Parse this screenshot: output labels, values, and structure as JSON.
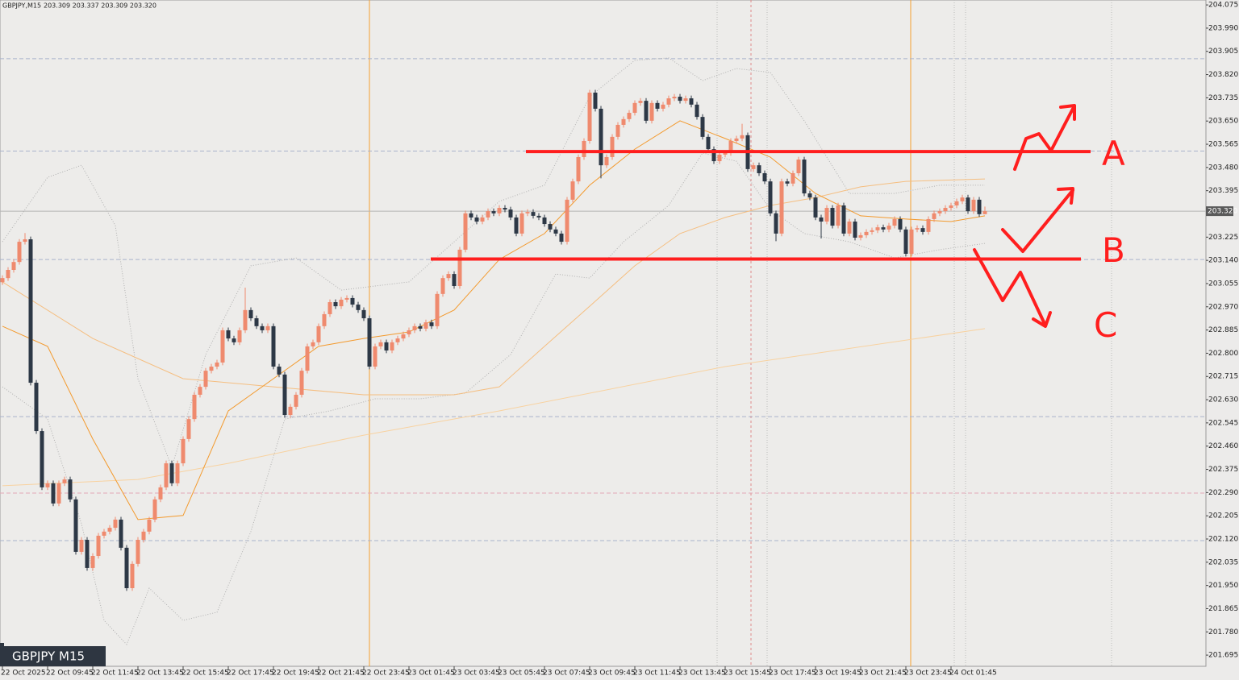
{
  "chart_data": {
    "type": "candlestick",
    "title": "GBPJPY,M15",
    "subtitle": "203.309 203.337 203.309 203.320",
    "badge": "GBPJPY M15",
    "up_color": "#ef8a6e",
    "down_color": "#2d3846",
    "open": [
      203.06,
      203.075,
      203.105,
      203.134,
      203.208,
      203.217,
      202.692,
      202.515,
      202.309,
      202.324,
      202.25,
      202.324,
      202.338,
      202.265,
      202.073,
      202.117,
      202.014,
      202.058,
      202.132,
      202.147,
      202.161,
      202.191,
      202.088,
      201.94,
      202.029,
      202.117,
      202.147,
      202.191,
      202.265,
      202.309,
      202.397,
      202.324,
      202.397,
      202.486,
      202.559,
      202.648,
      202.677,
      202.736,
      202.751,
      202.766,
      202.884,
      202.854,
      202.84,
      202.884,
      202.958,
      202.928,
      202.899,
      202.884,
      202.899,
      202.751,
      202.722,
      202.574,
      202.604,
      202.648,
      202.736,
      202.825,
      202.84,
      202.899,
      202.943,
      202.987,
      202.972,
      202.996,
      203.002,
      202.978,
      202.958,
      202.928,
      202.751,
      202.825,
      202.84,
      202.81,
      202.84,
      202.854,
      202.869,
      202.884,
      202.899,
      202.89,
      202.913,
      202.899,
      203.017,
      203.075,
      203.09,
      203.046,
      203.179,
      203.312,
      203.297,
      203.282,
      203.297,
      203.32,
      203.312,
      203.332,
      203.326,
      203.297,
      203.238,
      203.312,
      203.317,
      203.303,
      203.297,
      203.273,
      203.253,
      203.238,
      203.208,
      203.362,
      203.429,
      203.518,
      203.577,
      203.754,
      203.695,
      203.488,
      203.518,
      203.592,
      203.636,
      203.657,
      203.68,
      203.716,
      203.724,
      203.651,
      203.716,
      203.695,
      203.71,
      203.733,
      203.739,
      203.724,
      203.733,
      203.71,
      203.665,
      203.592,
      203.547,
      203.503,
      203.527,
      203.533,
      203.577,
      203.586,
      203.598,
      203.474,
      203.488,
      203.459,
      203.429,
      203.312,
      203.238,
      203.429,
      203.421,
      203.459,
      203.509,
      203.385,
      203.37,
      203.297,
      203.282,
      203.332,
      203.267,
      203.341,
      203.238,
      203.282,
      203.223,
      203.232,
      203.244,
      203.25,
      203.261,
      203.253,
      203.267,
      203.291,
      203.253,
      203.164,
      203.253,
      203.258,
      203.244,
      203.291,
      203.312,
      203.32,
      203.332,
      203.341,
      203.356,
      203.37,
      203.32,
      203.362,
      203.309
    ],
    "high": [
      203.085,
      203.115,
      203.144,
      203.218,
      203.24,
      203.227,
      202.702,
      202.525,
      202.334,
      202.334,
      202.334,
      202.348,
      202.348,
      202.275,
      202.127,
      202.127,
      202.068,
      202.142,
      202.157,
      202.171,
      202.201,
      202.201,
      202.098,
      202.039,
      202.127,
      202.157,
      202.201,
      202.275,
      202.319,
      202.407,
      202.407,
      202.407,
      202.496,
      202.569,
      202.658,
      202.687,
      202.746,
      202.761,
      202.776,
      202.894,
      202.894,
      202.864,
      202.894,
      203.04,
      202.968,
      202.938,
      202.909,
      202.909,
      202.909,
      202.761,
      202.732,
      202.614,
      202.658,
      202.746,
      202.835,
      202.85,
      202.909,
      202.953,
      202.997,
      202.997,
      203.006,
      203.012,
      203.012,
      202.988,
      202.968,
      202.938,
      202.835,
      202.85,
      202.85,
      202.85,
      202.864,
      202.879,
      202.894,
      202.909,
      202.909,
      202.923,
      202.923,
      203.027,
      203.085,
      203.1,
      203.1,
      203.189,
      203.322,
      203.322,
      203.307,
      203.307,
      203.33,
      203.33,
      203.342,
      203.342,
      203.336,
      203.307,
      203.322,
      203.327,
      203.327,
      203.313,
      203.307,
      203.283,
      203.263,
      203.248,
      203.372,
      203.439,
      203.528,
      203.587,
      203.764,
      203.764,
      203.705,
      203.528,
      203.602,
      203.646,
      203.667,
      203.69,
      203.726,
      203.734,
      203.734,
      203.726,
      203.726,
      203.72,
      203.743,
      203.749,
      203.749,
      203.743,
      203.743,
      203.72,
      203.675,
      203.602,
      203.557,
      203.537,
      203.543,
      203.587,
      203.596,
      203.64,
      203.608,
      203.498,
      203.498,
      203.469,
      203.439,
      203.322,
      203.439,
      203.439,
      203.469,
      203.519,
      203.519,
      203.395,
      203.38,
      203.307,
      203.342,
      203.342,
      203.351,
      203.351,
      203.292,
      203.292,
      203.242,
      203.254,
      203.26,
      203.271,
      203.271,
      203.277,
      203.301,
      203.301,
      203.263,
      203.263,
      203.268,
      203.268,
      203.301,
      203.322,
      203.33,
      203.342,
      203.351,
      203.366,
      203.38,
      203.38,
      203.372,
      203.372,
      203.337
    ],
    "low": [
      203.05,
      203.065,
      203.095,
      203.124,
      203.198,
      202.682,
      202.505,
      202.299,
      202.299,
      202.24,
      202.24,
      202.314,
      202.255,
      202.063,
      202.063,
      202.004,
      202.004,
      202.048,
      202.122,
      202.137,
      202.151,
      202.078,
      201.93,
      201.93,
      202.019,
      202.107,
      202.137,
      202.181,
      202.255,
      202.299,
      202.314,
      202.314,
      202.387,
      202.476,
      202.549,
      202.638,
      202.667,
      202.726,
      202.741,
      202.756,
      202.844,
      202.83,
      202.83,
      202.874,
      202.918,
      202.889,
      202.874,
      202.874,
      202.741,
      202.712,
      202.564,
      202.564,
      202.594,
      202.638,
      202.726,
      202.815,
      202.83,
      202.889,
      202.933,
      202.962,
      202.962,
      202.986,
      202.968,
      202.948,
      202.918,
      202.741,
      202.741,
      202.815,
      202.8,
      202.8,
      202.83,
      202.844,
      202.859,
      202.874,
      202.88,
      202.88,
      202.889,
      202.889,
      203.007,
      203.065,
      203.036,
      203.036,
      203.169,
      203.287,
      203.272,
      203.272,
      203.287,
      203.302,
      203.302,
      203.316,
      203.287,
      203.228,
      203.228,
      203.302,
      203.293,
      203.287,
      203.263,
      203.243,
      203.228,
      203.198,
      203.198,
      203.352,
      203.419,
      203.508,
      203.567,
      203.685,
      203.44,
      203.478,
      203.508,
      203.582,
      203.626,
      203.647,
      203.67,
      203.706,
      203.641,
      203.641,
      203.685,
      203.685,
      203.7,
      203.723,
      203.714,
      203.714,
      203.7,
      203.655,
      203.582,
      203.537,
      203.493,
      203.493,
      203.517,
      203.523,
      203.567,
      203.576,
      203.464,
      203.464,
      203.449,
      203.419,
      203.302,
      203.21,
      203.228,
      203.411,
      203.411,
      203.449,
      203.375,
      203.36,
      203.287,
      203.22,
      203.272,
      203.257,
      203.257,
      203.228,
      203.228,
      203.213,
      203.213,
      203.222,
      203.234,
      203.24,
      203.243,
      203.243,
      203.257,
      203.243,
      203.154,
      203.154,
      203.243,
      203.234,
      203.234,
      203.281,
      203.302,
      203.31,
      203.322,
      203.331,
      203.346,
      203.31,
      203.31,
      203.299,
      203.309
    ],
    "close": [
      203.075,
      203.105,
      203.134,
      203.208,
      203.217,
      202.692,
      202.515,
      202.309,
      202.324,
      202.25,
      202.324,
      202.338,
      202.265,
      202.073,
      202.117,
      202.014,
      202.058,
      202.132,
      202.147,
      202.161,
      202.191,
      202.088,
      201.94,
      202.029,
      202.117,
      202.147,
      202.191,
      202.265,
      202.309,
      202.397,
      202.324,
      202.397,
      202.486,
      202.559,
      202.648,
      202.677,
      202.736,
      202.751,
      202.766,
      202.884,
      202.854,
      202.84,
      202.884,
      202.958,
      202.928,
      202.899,
      202.884,
      202.899,
      202.751,
      202.722,
      202.574,
      202.604,
      202.648,
      202.736,
      202.825,
      202.84,
      202.899,
      202.943,
      202.987,
      202.972,
      202.996,
      203.002,
      202.978,
      202.958,
      202.928,
      202.751,
      202.825,
      202.84,
      202.81,
      202.84,
      202.854,
      202.869,
      202.884,
      202.899,
      202.89,
      202.913,
      202.899,
      203.017,
      203.075,
      203.09,
      203.046,
      203.179,
      203.312,
      203.297,
      203.282,
      203.297,
      203.32,
      203.312,
      203.332,
      203.326,
      203.297,
      203.238,
      203.312,
      203.317,
      203.303,
      203.297,
      203.273,
      203.253,
      203.238,
      203.208,
      203.362,
      203.429,
      203.518,
      203.577,
      203.754,
      203.695,
      203.488,
      203.518,
      203.592,
      203.636,
      203.657,
      203.68,
      203.716,
      203.724,
      203.651,
      203.716,
      203.695,
      203.71,
      203.733,
      203.739,
      203.724,
      203.733,
      203.71,
      203.665,
      203.592,
      203.547,
      203.503,
      203.527,
      203.533,
      203.577,
      203.586,
      203.598,
      203.474,
      203.488,
      203.459,
      203.429,
      203.312,
      203.238,
      203.429,
      203.421,
      203.459,
      203.509,
      203.385,
      203.37,
      203.297,
      203.282,
      203.332,
      203.267,
      203.341,
      203.238,
      203.282,
      203.223,
      203.232,
      203.244,
      203.25,
      203.261,
      203.253,
      203.267,
      203.291,
      203.253,
      203.164,
      203.253,
      203.258,
      203.244,
      203.291,
      203.312,
      203.32,
      203.332,
      203.341,
      203.356,
      203.37,
      203.32,
      203.362,
      203.309,
      203.32
    ],
    "xlim": [
      0,
      213
    ],
    "xticks": [
      {
        "value": 0,
        "label": "22 Oct 2025"
      },
      {
        "value": 8,
        "label": "22 Oct 09:45"
      },
      {
        "value": 16,
        "label": "22 Oct 11:45"
      },
      {
        "value": 24,
        "label": "22 Oct 13:45"
      },
      {
        "value": 32,
        "label": "22 Oct 15:45"
      },
      {
        "value": 40,
        "label": "22 Oct 17:45"
      },
      {
        "value": 48,
        "label": "22 Oct 19:45"
      },
      {
        "value": 56,
        "label": "22 Oct 21:45"
      },
      {
        "value": 64,
        "label": "22 Oct 23:45"
      },
      {
        "value": 72,
        "label": "23 Oct 01:45"
      },
      {
        "value": 80,
        "label": "23 Oct 03:45"
      },
      {
        "value": 88,
        "label": "23 Oct 05:45"
      },
      {
        "value": 96,
        "label": "23 Oct 07:45"
      },
      {
        "value": 104,
        "label": "23 Oct 09:45"
      },
      {
        "value": 112,
        "label": "23 Oct 11:45"
      },
      {
        "value": 120,
        "label": "23 Oct 13:45"
      },
      {
        "value": 128,
        "label": "23 Oct 15:45"
      },
      {
        "value": 136,
        "label": "23 Oct 17:45"
      },
      {
        "value": 144,
        "label": "23 Oct 19:45"
      },
      {
        "value": 152,
        "label": "23 Oct 21:45"
      },
      {
        "value": 160,
        "label": "23 Oct 23:45"
      },
      {
        "value": 168,
        "label": "24 Oct 01:45"
      }
    ],
    "ylim": [
      201.654,
      204.093
    ],
    "yticks": [
      204.075,
      {
        "value": 203.99,
        "label": "203.990"
      },
      203.905,
      {
        "value": 203.82,
        "label": "203.820"
      },
      203.735,
      {
        "value": 203.65,
        "label": "203.650"
      },
      203.565,
      {
        "value": 203.48,
        "label": "203.480"
      },
      203.395,
      203.225,
      {
        "value": 203.14,
        "label": "203.140"
      },
      203.055,
      {
        "value": 202.97,
        "label": "202.970"
      },
      202.885,
      {
        "value": 202.8,
        "label": "202.800"
      },
      202.715,
      {
        "value": 202.63,
        "label": "202.630"
      },
      202.545,
      {
        "value": 202.46,
        "label": "202.460"
      },
      202.375,
      {
        "value": 202.29,
        "label": "202.290"
      },
      202.205,
      {
        "value": 202.12,
        "label": "202.120"
      },
      202.035,
      {
        "value": 201.95,
        "label": "201.950"
      },
      201.865,
      {
        "value": 201.78,
        "label": "201.780"
      },
      201.695
    ],
    "series": [
      {
        "color": "#b0b0b0",
        "style": "dotted",
        "x": [
          0,
          8,
          14,
          20,
          24,
          30,
          36,
          44,
          52,
          60,
          72,
          80,
          88,
          96,
          104,
          112,
          118,
          124,
          130,
          136,
          142,
          150,
          158,
          166,
          174
        ],
        "values": [
          203.208,
          203.444,
          203.488,
          203.267,
          202.707,
          202.383,
          202.795,
          203.12,
          203.149,
          203.031,
          203.061,
          203.208,
          203.356,
          203.415,
          203.739,
          203.872,
          203.881,
          203.798,
          203.842,
          203.828,
          203.651,
          203.385,
          203.385,
          203.415,
          203.415
        ]
      },
      {
        "color": "#b0b0b0",
        "style": "dotted",
        "x": [
          0,
          8,
          14,
          18,
          22,
          26,
          32,
          38,
          44,
          50,
          58,
          66,
          74,
          82,
          90,
          98,
          104,
          110,
          118,
          124,
          130,
          136,
          142,
          150,
          158,
          166,
          174
        ],
        "values": [
          202.677,
          202.559,
          202.176,
          201.822,
          201.734,
          201.94,
          201.822,
          201.852,
          202.147,
          202.559,
          202.589,
          202.633,
          202.633,
          202.654,
          202.795,
          203.09,
          203.075,
          203.208,
          203.341,
          203.533,
          203.503,
          203.326,
          203.238,
          203.208,
          203.149,
          203.179,
          203.202
        ]
      },
      {
        "color": "#f8d2a0",
        "style": "solid",
        "x": [
          0,
          24,
          40,
          64,
          88,
          128,
          174
        ],
        "values": [
          202.315,
          202.338,
          202.397,
          202.5,
          202.589,
          202.751,
          202.89
        ]
      },
      {
        "color": "#f5be80",
        "style": "solid",
        "x": [
          0,
          16,
          32,
          48,
          64,
          80,
          88,
          96,
          104,
          112,
          120,
          128,
          136,
          144,
          152,
          160,
          174
        ],
        "values": [
          203.061,
          202.854,
          202.707,
          202.677,
          202.648,
          202.648,
          202.677,
          202.825,
          202.972,
          203.12,
          203.238,
          203.297,
          203.341,
          203.37,
          203.409,
          203.429,
          203.438
        ]
      },
      {
        "color": "#f39a2e",
        "style": "solid",
        "x": [
          0,
          8,
          16,
          24,
          32,
          40,
          48,
          56,
          64,
          72,
          80,
          88,
          96,
          104,
          112,
          120,
          128,
          136,
          144,
          152,
          160,
          168,
          174
        ],
        "values": [
          202.899,
          202.825,
          202.486,
          202.191,
          202.206,
          202.589,
          202.707,
          202.825,
          202.854,
          202.878,
          202.958,
          203.143,
          203.238,
          203.415,
          203.547,
          203.651,
          203.586,
          203.518,
          203.385,
          203.303,
          203.291,
          203.282,
          203.303
        ]
      }
    ],
    "levels": [
      {
        "value": 203.878,
        "color": "#a9b3cc"
      },
      {
        "value": 203.54,
        "color": "#a9b3cc"
      },
      {
        "value": 203.143,
        "color": "#a9b3cc"
      },
      {
        "value": 202.568,
        "color": "#a9b3cc"
      },
      {
        "value": 202.288,
        "color": "#e4a8b6"
      },
      {
        "value": 202.114,
        "color": "#a9b3cc"
      }
    ],
    "hlines": [
      {
        "value": 203.538,
        "color": "#ff1e1e"
      },
      {
        "value": 203.145,
        "color": "#ff1e1e"
      }
    ],
    "current_price": {
      "value": 203.32,
      "label": "203.320"
    },
    "annotations": [
      "A",
      "B",
      "C"
    ]
  }
}
